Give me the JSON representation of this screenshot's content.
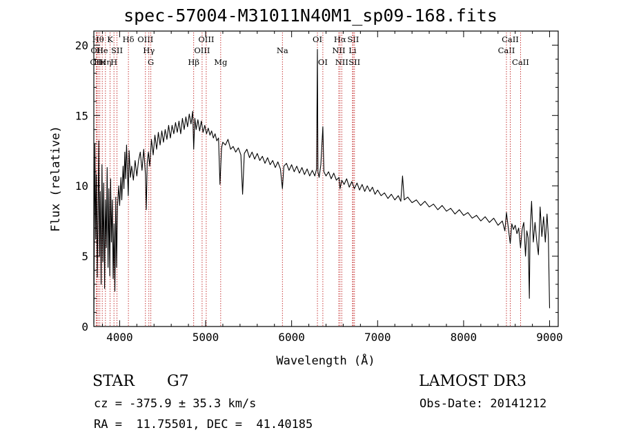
{
  "chart_data": {
    "type": "line",
    "title": "spec-57004-M31011N40M1_sp09-168.fits",
    "xlabel": "Wavelength (Å)",
    "ylabel": "Flux (relative)",
    "xlim": [
      3700,
      9100
    ],
    "ylim": [
      0,
      21
    ],
    "xticks": [
      4000,
      5000,
      6000,
      7000,
      8000,
      9000
    ],
    "yticks": [
      0,
      5,
      10,
      15,
      20
    ],
    "series": [
      {
        "name": "flux",
        "points": [
          [
            3700,
            0.2
          ],
          [
            3712,
            13.0
          ],
          [
            3722,
            6.2
          ],
          [
            3730,
            10.8
          ],
          [
            3740,
            3.5
          ],
          [
            3750,
            8.7
          ],
          [
            3758,
            13.2
          ],
          [
            3766,
            5.0
          ],
          [
            3775,
            9.6
          ],
          [
            3785,
            3.0
          ],
          [
            3795,
            11.5
          ],
          [
            3805,
            4.6
          ],
          [
            3815,
            10.2
          ],
          [
            3825,
            2.7
          ],
          [
            3835,
            9.0
          ],
          [
            3845,
            5.6
          ],
          [
            3855,
            11.3
          ],
          [
            3865,
            4.2
          ],
          [
            3875,
            9.8
          ],
          [
            3885,
            3.6
          ],
          [
            3895,
            10.5
          ],
          [
            3905,
            6.0
          ],
          [
            3915,
            9.0
          ],
          [
            3925,
            3.4
          ],
          [
            3935,
            7.3
          ],
          [
            3945,
            2.5
          ],
          [
            3955,
            9.2
          ],
          [
            3965,
            4.2
          ],
          [
            3975,
            8.6
          ],
          [
            3990,
            10.0
          ],
          [
            4000,
            8.6
          ],
          [
            4015,
            10.6
          ],
          [
            4025,
            9.0
          ],
          [
            4040,
            11.4
          ],
          [
            4050,
            9.8
          ],
          [
            4060,
            12.4
          ],
          [
            4070,
            10.5
          ],
          [
            4080,
            12.9
          ],
          [
            4090,
            11.2
          ],
          [
            4100,
            9.3
          ],
          [
            4110,
            12.5
          ],
          [
            4125,
            10.6
          ],
          [
            4140,
            11.4
          ],
          [
            4160,
            10.4
          ],
          [
            4180,
            11.8
          ],
          [
            4200,
            10.7
          ],
          [
            4220,
            11.8
          ],
          [
            4240,
            12.4
          ],
          [
            4260,
            11.1
          ],
          [
            4280,
            12.6
          ],
          [
            4300,
            10.8
          ],
          [
            4310,
            8.3
          ],
          [
            4320,
            11.6
          ],
          [
            4335,
            12.4
          ],
          [
            4350,
            11.4
          ],
          [
            4370,
            13.3
          ],
          [
            4390,
            12.2
          ],
          [
            4410,
            13.6
          ],
          [
            4430,
            12.6
          ],
          [
            4450,
            13.8
          ],
          [
            4470,
            12.9
          ],
          [
            4490,
            13.9
          ],
          [
            4510,
            13.1
          ],
          [
            4530,
            14.0
          ],
          [
            4550,
            13.3
          ],
          [
            4570,
            14.3
          ],
          [
            4590,
            13.4
          ],
          [
            4610,
            14.3
          ],
          [
            4630,
            13.7
          ],
          [
            4650,
            14.5
          ],
          [
            4670,
            13.8
          ],
          [
            4690,
            14.6
          ],
          [
            4710,
            13.7
          ],
          [
            4730,
            14.8
          ],
          [
            4750,
            14.0
          ],
          [
            4770,
            14.9
          ],
          [
            4790,
            14.2
          ],
          [
            4810,
            15.1
          ],
          [
            4830,
            14.4
          ],
          [
            4850,
            15.3
          ],
          [
            4861,
            12.6
          ],
          [
            4875,
            14.8
          ],
          [
            4890,
            14.0
          ],
          [
            4910,
            14.7
          ],
          [
            4930,
            13.9
          ],
          [
            4950,
            14.6
          ],
          [
            4970,
            13.8
          ],
          [
            4990,
            14.3
          ],
          [
            5010,
            13.7
          ],
          [
            5030,
            14.1
          ],
          [
            5050,
            13.6
          ],
          [
            5070,
            13.9
          ],
          [
            5090,
            13.4
          ],
          [
            5110,
            13.7
          ],
          [
            5130,
            13.2
          ],
          [
            5150,
            13.4
          ],
          [
            5167,
            10.1
          ],
          [
            5185,
            12.7
          ],
          [
            5200,
            13.1
          ],
          [
            5230,
            12.9
          ],
          [
            5260,
            13.3
          ],
          [
            5290,
            12.6
          ],
          [
            5320,
            12.8
          ],
          [
            5350,
            12.4
          ],
          [
            5380,
            12.7
          ],
          [
            5410,
            12.2
          ],
          [
            5430,
            9.4
          ],
          [
            5450,
            12.3
          ],
          [
            5480,
            12.6
          ],
          [
            5510,
            12.0
          ],
          [
            5540,
            12.4
          ],
          [
            5570,
            11.9
          ],
          [
            5600,
            12.3
          ],
          [
            5630,
            11.8
          ],
          [
            5660,
            12.1
          ],
          [
            5690,
            11.6
          ],
          [
            5720,
            12.0
          ],
          [
            5750,
            11.5
          ],
          [
            5780,
            11.8
          ],
          [
            5810,
            11.3
          ],
          [
            5840,
            11.7
          ],
          [
            5870,
            11.2
          ],
          [
            5893,
            9.8
          ],
          [
            5910,
            11.4
          ],
          [
            5940,
            11.6
          ],
          [
            5970,
            11.1
          ],
          [
            6000,
            11.5
          ],
          [
            6030,
            11.0
          ],
          [
            6060,
            11.4
          ],
          [
            6090,
            10.9
          ],
          [
            6120,
            11.3
          ],
          [
            6150,
            10.8
          ],
          [
            6180,
            11.2
          ],
          [
            6210,
            10.7
          ],
          [
            6240,
            11.1
          ],
          [
            6270,
            10.7
          ],
          [
            6290,
            11.2
          ],
          [
            6300,
            19.7
          ],
          [
            6306,
            11.0
          ],
          [
            6320,
            10.6
          ],
          [
            6340,
            11.5
          ],
          [
            6363,
            14.2
          ],
          [
            6375,
            11.0
          ],
          [
            6400,
            10.7
          ],
          [
            6430,
            11.0
          ],
          [
            6460,
            10.5
          ],
          [
            6490,
            10.9
          ],
          [
            6520,
            10.4
          ],
          [
            6550,
            10.6
          ],
          [
            6563,
            9.8
          ],
          [
            6583,
            10.4
          ],
          [
            6610,
            10.1
          ],
          [
            6640,
            10.5
          ],
          [
            6670,
            9.9
          ],
          [
            6700,
            10.3
          ],
          [
            6730,
            9.8
          ],
          [
            6760,
            10.2
          ],
          [
            6790,
            9.7
          ],
          [
            6820,
            10.1
          ],
          [
            6850,
            9.6
          ],
          [
            6880,
            10.0
          ],
          [
            6910,
            9.6
          ],
          [
            6940,
            9.9
          ],
          [
            6970,
            9.4
          ],
          [
            7000,
            9.7
          ],
          [
            7040,
            9.3
          ],
          [
            7080,
            9.5
          ],
          [
            7120,
            9.1
          ],
          [
            7160,
            9.4
          ],
          [
            7200,
            9.0
          ],
          [
            7240,
            9.3
          ],
          [
            7270,
            8.9
          ],
          [
            7290,
            10.7
          ],
          [
            7310,
            9.0
          ],
          [
            7350,
            9.2
          ],
          [
            7400,
            8.8
          ],
          [
            7450,
            9.0
          ],
          [
            7500,
            8.6
          ],
          [
            7550,
            8.9
          ],
          [
            7600,
            8.5
          ],
          [
            7650,
            8.7
          ],
          [
            7700,
            8.3
          ],
          [
            7750,
            8.6
          ],
          [
            7800,
            8.2
          ],
          [
            7850,
            8.4
          ],
          [
            7900,
            8.0
          ],
          [
            7950,
            8.3
          ],
          [
            8000,
            7.9
          ],
          [
            8050,
            8.1
          ],
          [
            8100,
            7.7
          ],
          [
            8150,
            7.9
          ],
          [
            8200,
            7.5
          ],
          [
            8250,
            7.8
          ],
          [
            8300,
            7.4
          ],
          [
            8350,
            7.7
          ],
          [
            8400,
            7.2
          ],
          [
            8450,
            7.5
          ],
          [
            8480,
            6.8
          ],
          [
            8498,
            8.1
          ],
          [
            8520,
            7.0
          ],
          [
            8542,
            5.9
          ],
          [
            8560,
            7.3
          ],
          [
            8580,
            6.9
          ],
          [
            8600,
            7.2
          ],
          [
            8620,
            6.6
          ],
          [
            8640,
            7.0
          ],
          [
            8662,
            5.6
          ],
          [
            8680,
            6.9
          ],
          [
            8700,
            7.4
          ],
          [
            8720,
            5.0
          ],
          [
            8735,
            6.8
          ],
          [
            8750,
            6.3
          ],
          [
            8765,
            2.0
          ],
          [
            8772,
            6.5
          ],
          [
            8790,
            8.9
          ],
          [
            8810,
            6.0
          ],
          [
            8830,
            7.4
          ],
          [
            8850,
            6.1
          ],
          [
            8870,
            5.1
          ],
          [
            8890,
            8.5
          ],
          [
            8910,
            6.4
          ],
          [
            8930,
            7.8
          ],
          [
            8950,
            6.0
          ],
          [
            8970,
            8.0
          ],
          [
            8985,
            6.4
          ],
          [
            9000,
            1.3
          ]
        ]
      }
    ],
    "lines": [
      {
        "label": "CII",
        "wavelength": 3727,
        "row": 3
      },
      {
        "label": "OII",
        "wavelength": 3737,
        "row": 2
      },
      {
        "label": "Hθ",
        "wavelength": 3750,
        "row": 1
      },
      {
        "label": "Hκ",
        "wavelength": 3770,
        "row": 3
      },
      {
        "label": "He",
        "wavelength": 3798,
        "row": 2
      },
      {
        "label": "Hη",
        "wavelength": 3835,
        "row": 3
      },
      {
        "label": "K",
        "wavelength": 3889,
        "row": 1
      },
      {
        "label": "H",
        "wavelength": 3934,
        "row": 3
      },
      {
        "label": "SII",
        "wavelength": 3969,
        "row": 2
      },
      {
        "label": "Hδ",
        "wavelength": 4102,
        "row": 1
      },
      {
        "label": "OIII",
        "wavelength": 4300,
        "row": 1
      },
      {
        "label": "Hγ",
        "wavelength": 4340,
        "row": 2
      },
      {
        "label": "G",
        "wavelength": 4363,
        "row": 3
      },
      {
        "label": "Hβ",
        "wavelength": 4861,
        "row": 3
      },
      {
        "label": "OIII",
        "wavelength": 4959,
        "row": 2
      },
      {
        "label": "OIII",
        "wavelength": 5007,
        "row": 1
      },
      {
        "label": "Mg",
        "wavelength": 5175,
        "row": 3
      },
      {
        "label": "Na",
        "wavelength": 5893,
        "row": 2
      },
      {
        "label": "OI",
        "wavelength": 6300,
        "row": 1
      },
      {
        "label": "OI",
        "wavelength": 6363,
        "row": 3
      },
      {
        "label": "Hα",
        "wavelength": 6563,
        "row": 1
      },
      {
        "label": "NII",
        "wavelength": 6548,
        "row": 2
      },
      {
        "label": "NII",
        "wavelength": 6583,
        "row": 3
      },
      {
        "label": "SII",
        "wavelength": 6716,
        "row": 1
      },
      {
        "label": "Li",
        "wavelength": 6708,
        "row": 2
      },
      {
        "label": "SII",
        "wavelength": 6731,
        "row": 3
      },
      {
        "label": "CaII",
        "wavelength": 8498,
        "row": 2
      },
      {
        "label": "CaII",
        "wavelength": 8542,
        "row": 1
      },
      {
        "label": "CaII",
        "wavelength": 8662,
        "row": 3
      }
    ]
  },
  "info": {
    "object_class": "STAR",
    "subclass": "G7",
    "survey": "LAMOST DR3",
    "cz": "cz = -375.9 ± 35.3 km/s",
    "obs_date": "Obs-Date: 20141212",
    "coords": "RA =  11.75501, DEC =  41.40185"
  },
  "colors": {
    "line_marker": "#c02020",
    "spectrum": "#000000",
    "axis": "#000000"
  }
}
